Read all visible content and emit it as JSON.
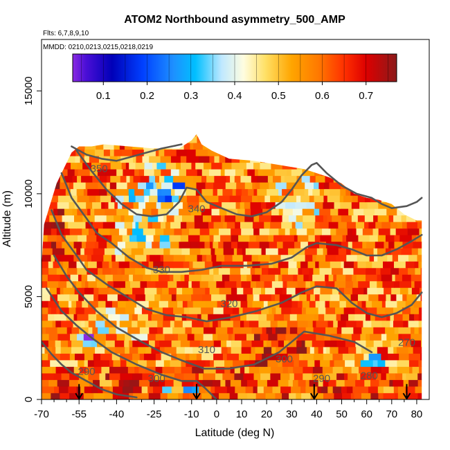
{
  "chart_data": {
    "type": "heatmap",
    "title": "ATOM2 Northbound asymmetry_500_AMP",
    "flights_note": "Flts: 6,7,8,9,10",
    "dates_note": "MMDD: 0210,0213,0215,0218,0219",
    "xlabel": "Latitude (deg N)",
    "ylabel": "Altitude (m)",
    "xlim": [
      -70,
      85
    ],
    "ylim": [
      0,
      17500
    ],
    "x_ticks": [
      -70,
      -55,
      -40,
      -25,
      -10,
      0,
      10,
      20,
      30,
      40,
      50,
      60,
      70,
      80
    ],
    "x_minor_ticks": [
      -65,
      -60,
      -50,
      -45,
      -35,
      -30,
      -20,
      -15,
      -5,
      5,
      15,
      25,
      35,
      45,
      55,
      65,
      75
    ],
    "y_ticks": [
      0,
      5000,
      10000,
      15000
    ],
    "colorbar": {
      "vmin": 0.03,
      "vmax": 0.77,
      "ticks": [
        0.1,
        0.2,
        0.3,
        0.4,
        0.5,
        0.6,
        0.7
      ],
      "tick_labels": [
        "0.1",
        "0.2",
        "0.3",
        "0.4",
        "0.5",
        "0.6",
        "0.7"
      ],
      "stops": [
        {
          "v": 0.03,
          "color": "#8a2be2"
        },
        {
          "v": 0.06,
          "color": "#4b0fd6"
        },
        {
          "v": 0.12,
          "color": "#0000b8"
        },
        {
          "v": 0.19,
          "color": "#0040ff"
        },
        {
          "v": 0.26,
          "color": "#1e90ff"
        },
        {
          "v": 0.31,
          "color": "#00bfff"
        },
        {
          "v": 0.37,
          "color": "#bfe8ff"
        },
        {
          "v": 0.42,
          "color": "#fffde0"
        },
        {
          "v": 0.47,
          "color": "#ffe066"
        },
        {
          "v": 0.53,
          "color": "#ffa500"
        },
        {
          "v": 0.59,
          "color": "#ff7a00"
        },
        {
          "v": 0.65,
          "color": "#ff3000"
        },
        {
          "v": 0.7,
          "color": "#dd0000"
        },
        {
          "v": 0.77,
          "color": "#8b1a1a"
        }
      ]
    },
    "envelope": {
      "lat": [
        -70,
        -69,
        -64,
        -62,
        -58,
        -55,
        -50,
        -45,
        -35,
        -25,
        -15,
        -10,
        -8,
        -6,
        -2,
        5,
        15,
        25,
        35,
        40,
        45,
        50,
        55,
        60,
        65,
        70,
        75,
        80,
        82
      ],
      "top_alt": [
        6500,
        8500,
        10500,
        11000,
        12000,
        12300,
        12300,
        12400,
        12300,
        12200,
        12200,
        12600,
        12900,
        12400,
        12100,
        11700,
        11600,
        11400,
        11200,
        11000,
        10800,
        10500,
        10000,
        9800,
        9700,
        9500,
        9000,
        8700,
        8700
      ]
    },
    "field": {
      "base": 0.58,
      "regions": [
        {
          "lat": [
            -40,
            -15
          ],
          "alt": [
            7000,
            10500
          ],
          "delta": -0.12
        },
        {
          "lat": [
            -28,
            -10
          ],
          "alt": [
            9500,
            11500
          ],
          "delta": -0.1
        },
        {
          "lat": [
            25,
            40
          ],
          "alt": [
            8000,
            11000
          ],
          "delta": -0.1
        },
        {
          "lat": [
            -50,
            -30
          ],
          "alt": [
            3000,
            4500
          ],
          "delta": -0.08
        },
        {
          "lat": [
            -20,
            -8
          ],
          "alt": [
            200,
            700
          ],
          "delta": -0.25
        },
        {
          "lat": [
            -55,
            -48
          ],
          "alt": [
            2500,
            3200
          ],
          "delta": -0.4
        },
        {
          "lat": [
            60,
            66
          ],
          "alt": [
            1500,
            2300
          ],
          "delta": -0.3
        },
        {
          "lat": [
            15,
            35
          ],
          "alt": [
            1500,
            3500
          ],
          "delta": 0.08
        },
        {
          "lat": [
            -70,
            -62
          ],
          "alt": [
            7000,
            12000
          ],
          "delta": 0.1
        }
      ]
    },
    "contours": [
      {
        "label": "290",
        "lat": [
          -70,
          -66,
          -62,
          -58,
          -52,
          -46,
          -40,
          -32
        ],
        "alt": [
          2800,
          2200,
          1700,
          1300,
          900,
          500,
          250,
          100
        ]
      },
      {
        "label": "300",
        "lat": [
          -68,
          -62,
          -56,
          -50,
          -42,
          -32,
          -22,
          -14,
          -8,
          -5,
          0
        ],
        "alt": [
          5400,
          4300,
          3600,
          3000,
          2300,
          1700,
          1200,
          900,
          900,
          600,
          0
        ]
      },
      {
        "label": "310",
        "lat": [
          -65,
          -60,
          -55,
          -48,
          -40,
          -30,
          -22,
          -14,
          -5,
          5,
          15,
          25,
          35,
          45,
          55,
          62
        ],
        "alt": [
          7000,
          6000,
          5200,
          4300,
          3500,
          2800,
          2300,
          1900,
          1500,
          1500,
          1700,
          2300,
          3300,
          3100,
          2800,
          2300
        ]
      },
      {
        "label": "320",
        "lat": [
          -66,
          -62,
          -56,
          -52,
          -44,
          -36,
          -28,
          -20,
          -12,
          -4,
          6,
          16,
          26,
          34,
          40,
          48,
          54,
          60,
          66,
          72,
          78,
          82
        ],
        "alt": [
          9200,
          8000,
          7000,
          6300,
          5600,
          5000,
          4400,
          4100,
          4000,
          3800,
          4000,
          4300,
          4700,
          5200,
          5500,
          5400,
          4700,
          4200,
          4000,
          4200,
          4600,
          5200
        ]
      },
      {
        "label": "330",
        "lat": [
          -62,
          -58,
          -52,
          -48,
          -42,
          -35,
          -28,
          -22,
          -14,
          -6,
          2,
          12,
          22,
          30,
          36,
          40,
          48,
          54,
          60,
          66,
          72,
          78,
          82
        ],
        "alt": [
          11000,
          9800,
          8800,
          8100,
          7600,
          6900,
          6400,
          6200,
          6200,
          6300,
          6500,
          6500,
          6600,
          6900,
          7400,
          7600,
          7500,
          7300,
          7000,
          7000,
          7300,
          7700,
          8000
        ]
      },
      {
        "label": "340",
        "lat": [
          -56,
          -50,
          -44,
          -38,
          -32,
          -26,
          -20,
          -15,
          -12,
          -8,
          -4,
          2,
          8,
          14,
          20,
          26,
          30,
          34,
          38,
          40,
          44,
          50,
          56,
          62,
          66,
          70,
          76,
          80,
          82
        ],
        "alt": [
          12100,
          11100,
          10200,
          9500,
          9000,
          8900,
          9000,
          9600,
          10300,
          10200,
          9600,
          9300,
          9000,
          8900,
          9100,
          9600,
          10200,
          10900,
          11400,
          11500,
          11000,
          10400,
          10000,
          9800,
          9500,
          9300,
          9400,
          9600,
          9800
        ]
      },
      {
        "label": "350",
        "lat": [
          -58,
          -52,
          -46,
          -40,
          -34,
          -28,
          -22,
          -18,
          -14
        ],
        "alt": [
          12300,
          11900,
          11700,
          11600,
          11800,
          12000,
          12200,
          12300,
          12400
        ]
      }
    ],
    "contour_labels": [
      {
        "text": "350",
        "lat": -47,
        "alt": 11050
      },
      {
        "text": "340",
        "lat": -8,
        "alt": 9100
      },
      {
        "text": "330",
        "lat": -22,
        "alt": 6150
      },
      {
        "text": "320",
        "lat": 5,
        "alt": 4500
      },
      {
        "text": "310",
        "lat": -4,
        "alt": 2250
      },
      {
        "text": "300",
        "lat": -24,
        "alt": 850
      },
      {
        "text": "300",
        "lat": 27,
        "alt": 1800
      },
      {
        "text": "290",
        "lat": -52,
        "alt": 1200
      },
      {
        "text": "290",
        "lat": 42,
        "alt": 850
      },
      {
        "text": "280",
        "lat": 61,
        "alt": 1000
      },
      {
        "text": "270",
        "lat": 76,
        "alt": 2600
      }
    ],
    "arrows_lat": [
      -55,
      -8,
      39,
      76
    ],
    "arrow_top_alt": 750
  }
}
